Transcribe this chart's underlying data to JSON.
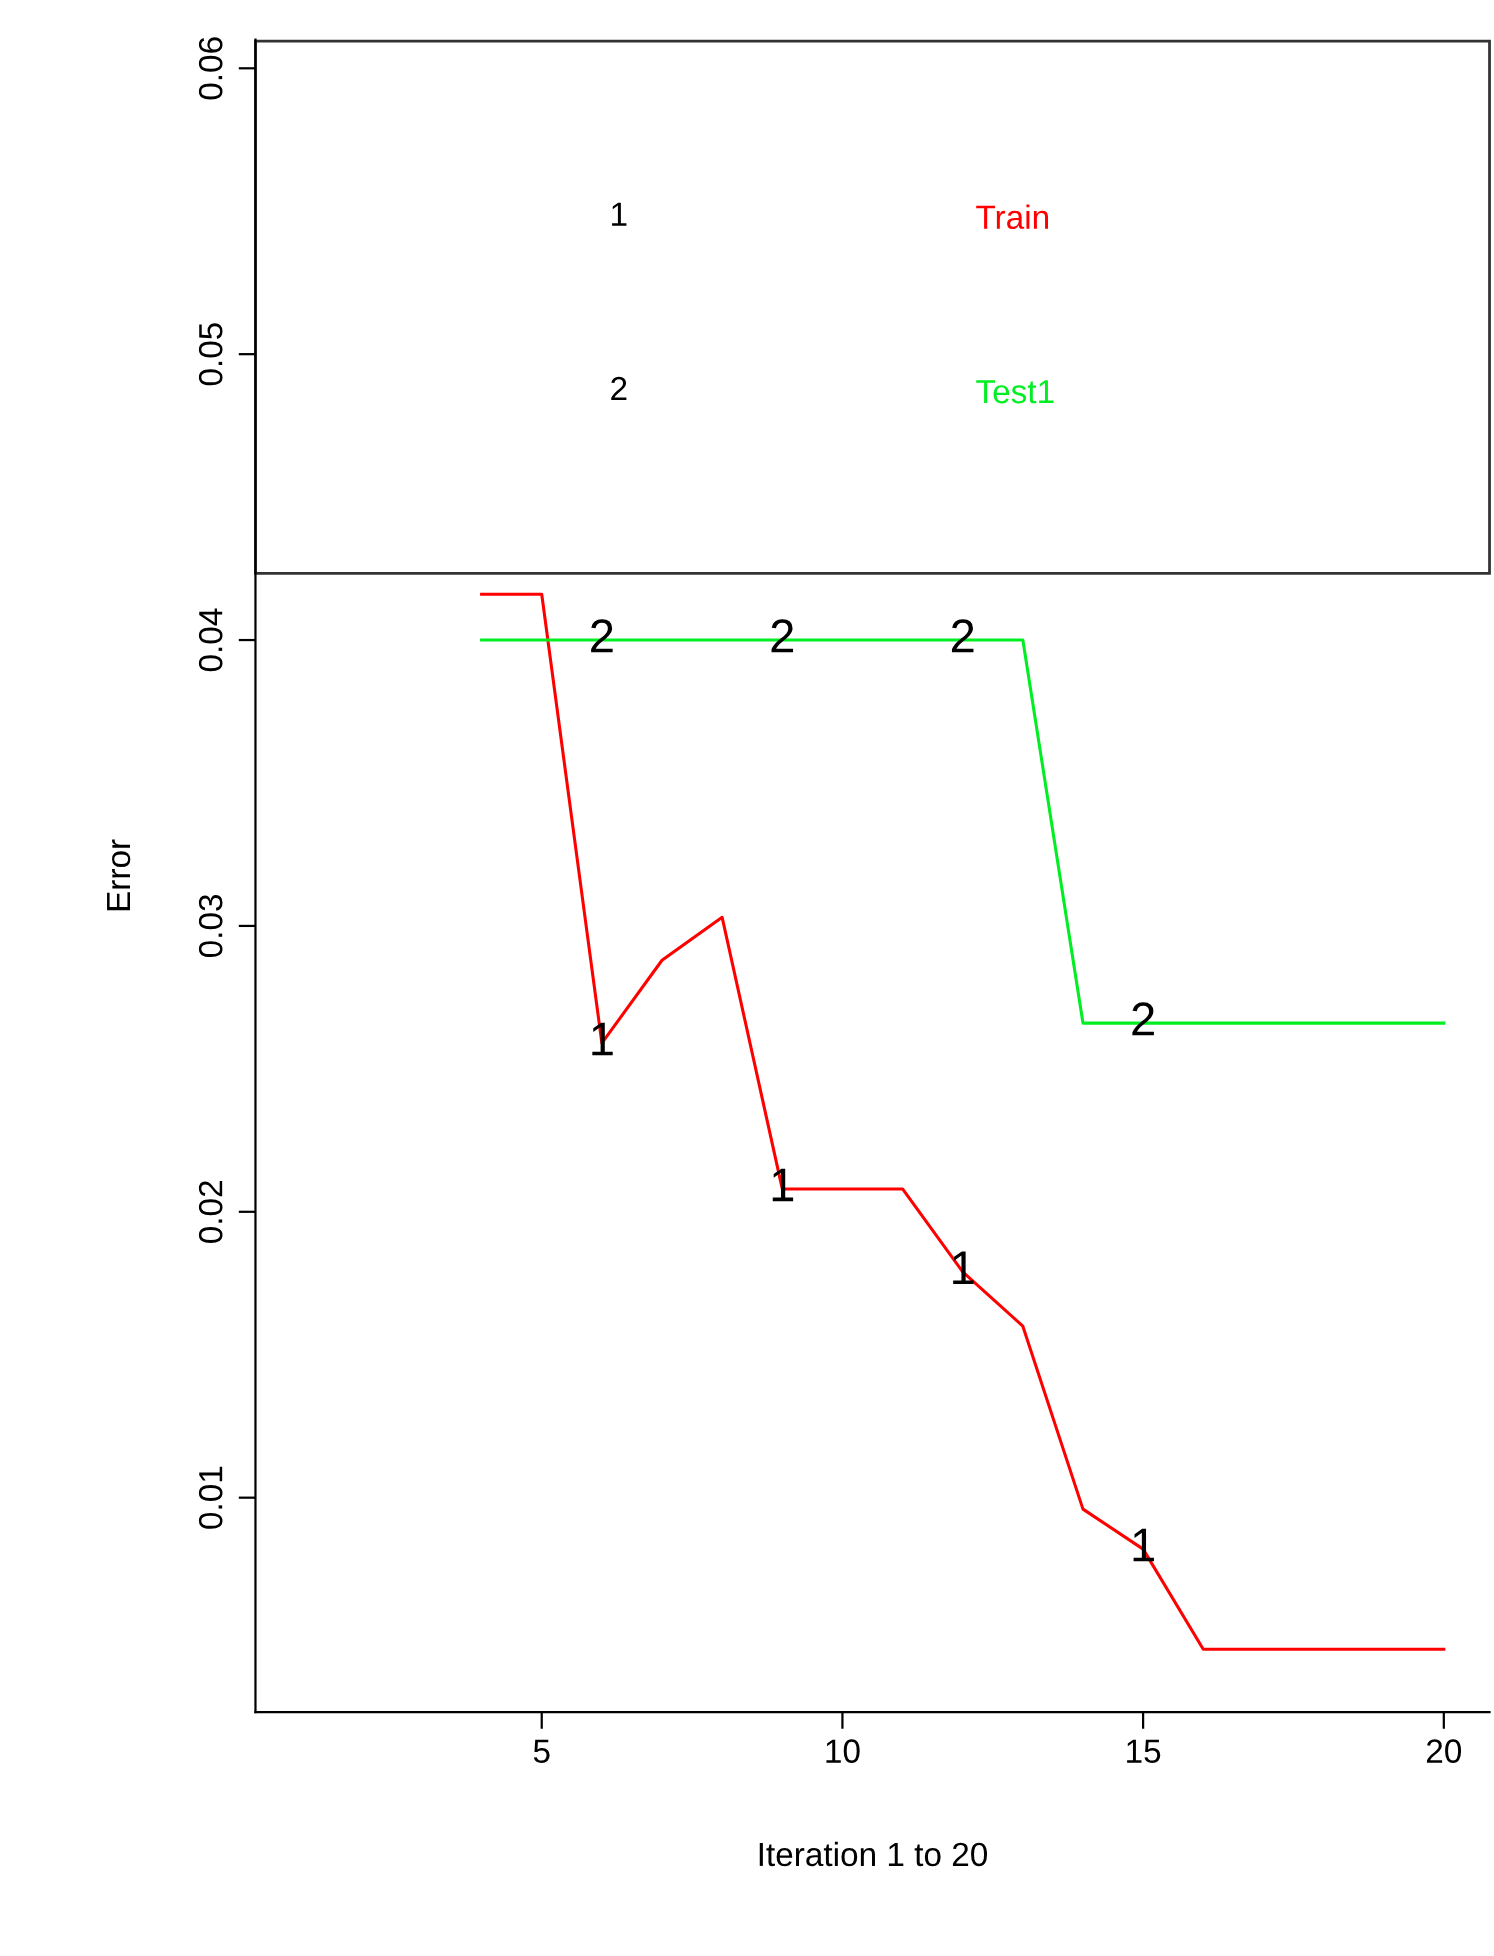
{
  "chart_data": {
    "type": "line",
    "xlabel": "Iteration 1 to 20",
    "ylabel": "Error",
    "x": [
      4,
      5,
      6,
      7,
      8,
      9,
      10,
      11,
      12,
      13,
      14,
      15,
      16,
      17,
      18,
      19,
      20
    ],
    "series": [
      {
        "name": "Train",
        "color": "#ff0000",
        "values": [
          0.0416,
          0.0416,
          0.0259,
          0.0288,
          0.0303,
          0.0208,
          0.0208,
          0.0208,
          0.0179,
          0.016,
          0.0096,
          0.0082,
          0.0047,
          0.0047,
          0.0047,
          0.0047,
          0.0047
        ]
      },
      {
        "name": "Test1",
        "color": "#00ee22",
        "values": [
          0.04,
          0.04,
          0.04,
          0.04,
          0.04,
          0.04,
          0.04,
          0.04,
          0.04,
          0.04,
          0.0266,
          0.0266,
          0.0266,
          0.0266,
          0.0266,
          0.0266,
          0.0266
        ]
      }
    ],
    "annotations": [
      "1",
      "2",
      {
        "text": "1",
        "x": 6,
        "y": 0.0259
      },
      {
        "text": "1",
        "x": 9,
        "y": 0.0208
      },
      {
        "text": "1",
        "x": 12,
        "y": 0.0179
      },
      {
        "text": "1",
        "x": 15,
        "y": 0.0082
      },
      {
        "text": "2",
        "x": 6,
        "y": 0.04
      },
      {
        "text": "2",
        "x": 9,
        "y": 0.04
      },
      {
        "text": "2",
        "x": 12,
        "y": 0.04
      },
      {
        "text": "2",
        "x": 15,
        "y": 0.0266
      }
    ],
    "xlim": [
      0.24,
      20.76
    ],
    "ylim": [
      0.0025,
      0.061
    ],
    "xticks": [
      5,
      10,
      15,
      20
    ],
    "yticks": [
      0.01,
      0.02,
      0.03,
      0.04,
      0.05,
      0.06
    ],
    "grid": false,
    "legend": "top",
    "marker": "none",
    "line_style": "solid"
  }
}
